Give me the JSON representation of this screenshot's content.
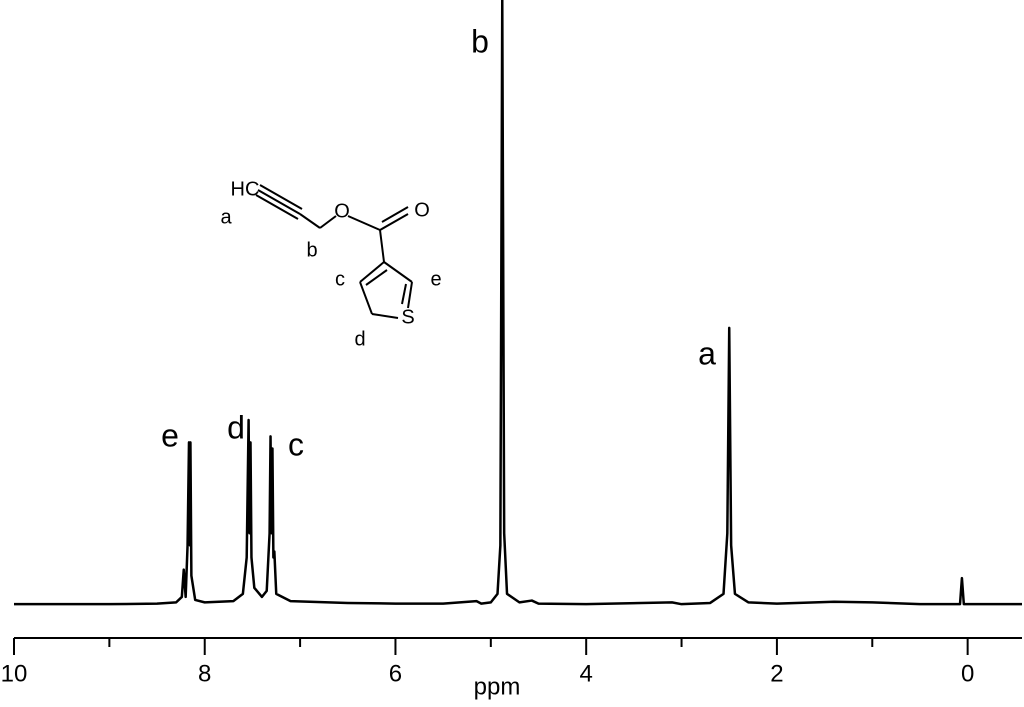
{
  "chart_data": {
    "type": "line",
    "xlabel": "ppm",
    "color": "#000000",
    "xlim": [
      10,
      -0.57
    ],
    "ylim": [
      0,
      100
    ],
    "xticks": [
      10,
      8,
      6,
      4,
      2,
      0
    ],
    "minor_xticks": [
      9,
      7,
      5,
      3,
      1
    ],
    "x": [
      10,
      9,
      8.5,
      8.3,
      8.24,
      8.22,
      8.2,
      8.18,
      8.165,
      8.155,
      8.15,
      8.14,
      8.1,
      8.0,
      7.7,
      7.6,
      7.56,
      7.54,
      7.53,
      7.52,
      7.51,
      7.48,
      7.4,
      7.35,
      7.32,
      7.31,
      7.3,
      7.29,
      7.28,
      7.27,
      7.25,
      7.1,
      6.5,
      6,
      5.5,
      5.15,
      5.1,
      5.0,
      4.93,
      4.9,
      4.88,
      4.86,
      4.83,
      4.7,
      4.57,
      4.5,
      4,
      3.1,
      3,
      2.7,
      2.56,
      2.52,
      2.5,
      2.48,
      2.44,
      2.3,
      2,
      1.4,
      1,
      0.5,
      0.08,
      0.06,
      0.04,
      -0.57
    ],
    "values": [
      0.3,
      0.3,
      0.4,
      0.6,
      1.5,
      6,
      1.5,
      10,
      27,
      10,
      27,
      5,
      1,
      0.6,
      0.8,
      2,
      8,
      30.7,
      12,
      27,
      8,
      3,
      1.5,
      2.5,
      12,
      28,
      12,
      26,
      8,
      9,
      2,
      0.8,
      0.5,
      0.4,
      0.4,
      0.8,
      0.4,
      0.6,
      2,
      10,
      100,
      12,
      2,
      0.6,
      0.9,
      0.4,
      0.3,
      0.6,
      0.3,
      0.5,
      2,
      12,
      45.9,
      10,
      2,
      0.6,
      0.4,
      0.7,
      0.6,
      0.3,
      0.3,
      4.6,
      0.3,
      0.3
    ],
    "annotations": [
      "e",
      "d",
      "c",
      "b",
      "a"
    ],
    "structure_labels": [
      "HC",
      "O",
      "O",
      "S",
      "a",
      "b",
      "c",
      "d",
      "e"
    ]
  }
}
